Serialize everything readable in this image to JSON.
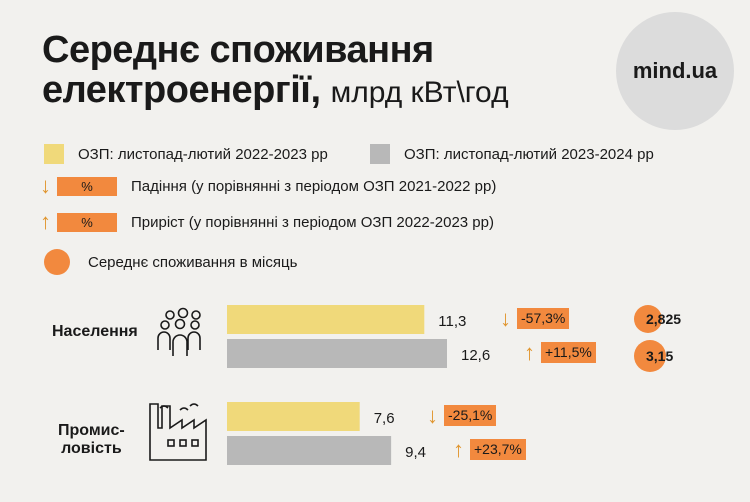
{
  "title": {
    "line1": "Середнє споживання",
    "line2": "електроенергії,",
    "unit": "млрд кВт\\год"
  },
  "logo": "mind.ua",
  "legend": {
    "series_2022": "ОЗП: листопад-лютий 2022-2023 рр",
    "series_2023": "ОЗП: листопад-лютий 2023-2024 рр",
    "chip_text": "%",
    "decline": "Падіння (у порівнянні з періодом ОЗП 2021-2022 рр)",
    "growth": "Приріст (у порівнянні з періодом ОЗП 2022-2023 рр)",
    "monthly": "Середнє споживання в місяць"
  },
  "colors": {
    "yellow": "#f0d97a",
    "gray": "#b8b8b8",
    "orange": "#f2893e",
    "arrow": "#e0952e"
  },
  "icons": [
    "people-group-icon",
    "factory-icon",
    "arrow-down-icon",
    "arrow-up-icon"
  ],
  "chart_data": {
    "type": "bar",
    "orientation": "horizontal",
    "categories": [
      "Населення",
      "Промис-\nловість"
    ],
    "series": [
      {
        "name": "ОЗП: листопад-лютий 2022-2023 рр",
        "values": [
          11.3,
          7.6
        ],
        "labels": [
          "11,3",
          "7,6"
        ],
        "changes": [
          "-57,3%",
          "-25,1%"
        ]
      },
      {
        "name": "ОЗП: листопад-лютий 2023-2024 рр",
        "values": [
          12.6,
          9.4
        ],
        "labels": [
          "12,6",
          "9,4"
        ],
        "changes": [
          "+11,5%",
          "+23,7%"
        ]
      }
    ],
    "monthly_average": {
      "Населення": [
        "2,825",
        "3,15"
      ]
    }
  }
}
